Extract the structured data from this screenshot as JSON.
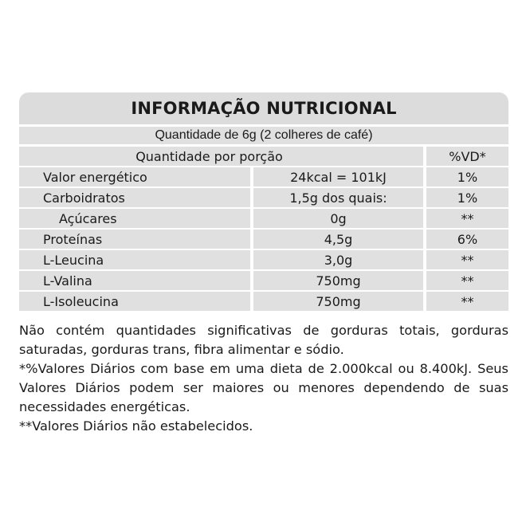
{
  "label": {
    "title": "INFORMAÇÃO NUTRICIONAL",
    "serving": "Quantidade de 6g (2 colheres de café)",
    "header": {
      "portion": "Quantidade por porção",
      "vd": "%VD*"
    },
    "rows": [
      {
        "name": "Valor energético",
        "amount": "24kcal = 101kJ",
        "vd": "1%"
      },
      {
        "name": "Carboidratos",
        "amount": "1,5g dos quais:",
        "vd": "1%"
      },
      {
        "name": "Açúcares",
        "amount": "0g",
        "vd": "**"
      },
      {
        "name": "Proteínas",
        "amount": "4,5g",
        "vd": "6%"
      },
      {
        "name": "L-Leucina",
        "amount": "3,0g",
        "vd": "**"
      },
      {
        "name": "L-Valina",
        "amount": "750mg",
        "vd": "**"
      },
      {
        "name": "L-Isoleucina",
        "amount": "750mg",
        "vd": "**"
      }
    ]
  },
  "notes": {
    "line1": "Não contém quantidades significativas de gorduras totais, gorduras saturadas, gorduras trans, fibra alimentar e sódio.",
    "line2": "*%Valores Diários com base em uma dieta de 2.000kcal ou 8.400kJ. Seus Valores Diários podem ser maiores ou menores dependendo de suas necessidades energéticas.",
    "line3": "**Valores Diários não estabelecidos."
  }
}
